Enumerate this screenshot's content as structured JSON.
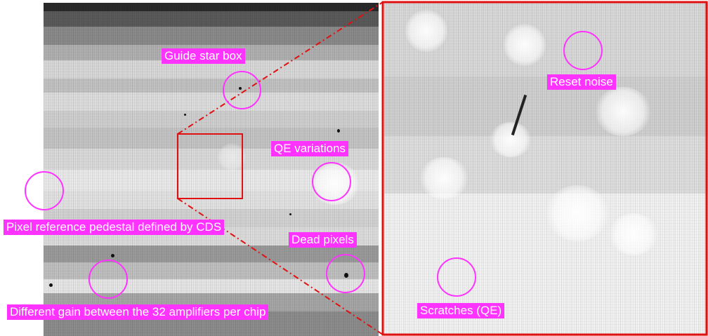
{
  "labels": {
    "guide_star_box": "Guide star box",
    "qe_variations": "QE variations",
    "pixel_reference": "Pixel reference pedestal defined by CDS",
    "dead_pixels": "Dead pixels",
    "different_gain": "Different gain between the 32 amplifiers per chip",
    "reset_noise": "Reset noise",
    "scratches": "Scratches (QE)"
  },
  "colors": {
    "annotation": "#ff33ff",
    "zoom_frame": "#e01010"
  }
}
